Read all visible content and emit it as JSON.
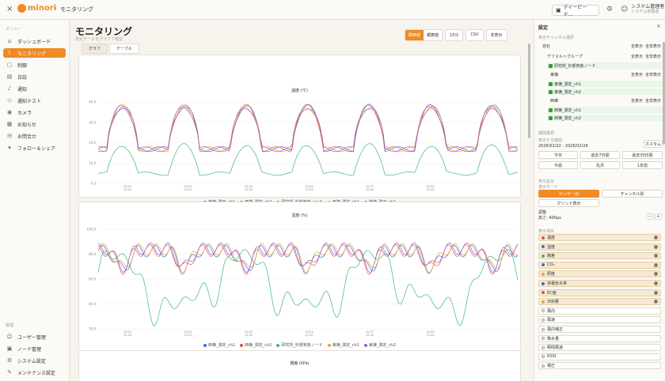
{
  "topbar": {
    "close": "×",
    "logo": "minori",
    "sep": "›",
    "breadcrumb": "モニタリング",
    "facility": "ディーピーテ...",
    "user_name": "システム管理者",
    "user_role": "システム管理者"
  },
  "sidebar": {
    "menu_label": "メニュー",
    "items": [
      {
        "label": "ダッシュボード",
        "icon": "dashboard-icon"
      },
      {
        "label": "モニタリング",
        "icon": "chart-icon"
      },
      {
        "label": "制御",
        "icon": "control-icon"
      },
      {
        "label": "日誌",
        "icon": "journal-icon"
      },
      {
        "label": "通知",
        "icon": "bell-icon"
      },
      {
        "label": "通知テスト",
        "icon": "test-icon"
      },
      {
        "label": "カメラ",
        "icon": "camera-icon"
      },
      {
        "label": "お知らせ",
        "icon": "news-icon"
      },
      {
        "label": "お問合せ",
        "icon": "contact-icon"
      },
      {
        "label": "フォロー＆シェア",
        "icon": "share-icon"
      }
    ],
    "admin_label": "管理",
    "admin_items": [
      {
        "label": "ユーザー管理"
      },
      {
        "label": "ノード管理"
      },
      {
        "label": "システム設定"
      },
      {
        "label": "メンテナンス設定"
      }
    ]
  },
  "main": {
    "title": "モニタリング",
    "subtitle": "測定データをグラフで確認",
    "view_tabs": [
      "グラフ",
      "テーブル"
    ],
    "mode": [
      "瞬時値",
      "積算値"
    ],
    "interval": "15分",
    "csv": "CSV",
    "hide": "非表示"
  },
  "charts": [
    {
      "title": "温度 (℃)"
    },
    {
      "title": "湿度 (%)"
    },
    {
      "title": "飽差 (kPa)"
    }
  ],
  "legend": [
    {
      "name": "西棟_測定_ch1",
      "color": "#3b6fd8"
    },
    {
      "name": "西棟_測定_ch2",
      "color": "#e05050"
    },
    {
      "name": "研究所_外部気象ノード",
      "color": "#3cb878"
    },
    {
      "name": "東棟_測定_ch1",
      "color": "#f0a030"
    },
    {
      "name": "東棟_測定_ch2",
      "color": "#9b5fd8"
    }
  ],
  "chart_data": [
    {
      "type": "line",
      "title": "温度 (℃)",
      "ylim": [
        0,
        40
      ],
      "yticks": [
        "0.0",
        "10.0",
        "20.0",
        "30.0",
        "40.0"
      ],
      "xticks": [
        "02/23\n12:00",
        "02/24\n12:00",
        "02/25\n12:00",
        "02/26\n12:00",
        "02/27\n12:00",
        "02/28\n12:00"
      ]
    },
    {
      "type": "line",
      "title": "湿度 (%)",
      "ylim": [
        20,
        100
      ],
      "yticks": [
        "20.0",
        "40.0",
        "60.0",
        "80.0",
        "100.0"
      ],
      "xticks": [
        "02/23\n12:00",
        "02/24\n12:00",
        "02/25\n12:00",
        "02/26\n12:00",
        "02/27\n12:00",
        "02/28\n12:00"
      ]
    }
  ],
  "right": {
    "title": "設定",
    "close": "×",
    "ch_sec": "表示チャンネル選択",
    "show_all": "全表示",
    "hide_all": "全非表示",
    "root": "自社",
    "group": "デフォルトグループ",
    "node_ext": "研究所_外部気象ノード",
    "east": "東棟",
    "east1": "東棟_測定_ch1",
    "east2": "東棟_測定_ch2",
    "west": "西棟",
    "west1": "西棟_測定_ch1",
    "west2": "西棟_測定_ch2",
    "period_sec": "期間選択",
    "period_label": "表示する期間",
    "period": "2026/02/22 - 2026/02/28",
    "custom": "カスタム",
    "p_today": "今日",
    "p_7": "過去7日間",
    "p_30": "過去30日間",
    "p_week": "今週",
    "p_month": "先月",
    "p_year": "1年前",
    "disp_sec": "表示設定",
    "disp_label": "表示モード",
    "m_sensor": "センサー別",
    "m_channel": "チャンネル別",
    "m_grid": "グリッド表示",
    "height_label": "調整",
    "height_val": "高さ: 400px",
    "items_sec": "表示項目",
    "items": [
      {
        "label": "温度",
        "color": "#e05050",
        "on": true
      },
      {
        "label": "湿度",
        "color": "#3b6fd8",
        "on": true
      },
      {
        "label": "飽差",
        "color": "#3cb878",
        "on": true
      },
      {
        "label": "CO₂",
        "color": "#3b6fd8",
        "on": true
      },
      {
        "label": "照度",
        "color": "#f0a030",
        "on": true
      },
      {
        "label": "体積含水率",
        "color": "#3b6fd8",
        "on": true
      },
      {
        "label": "EC値",
        "color": "#e05050",
        "on": true
      },
      {
        "label": "日射量",
        "color": "#f0a030",
        "on": true
      },
      {
        "label": "風向",
        "on": false
      },
      {
        "label": "風速",
        "on": false
      },
      {
        "label": "風向補正",
        "on": false
      },
      {
        "label": "降水量",
        "on": false
      },
      {
        "label": "瞬間風速",
        "on": false
      },
      {
        "label": "RSSI",
        "on": false
      },
      {
        "label": "電圧",
        "on": false
      }
    ]
  }
}
